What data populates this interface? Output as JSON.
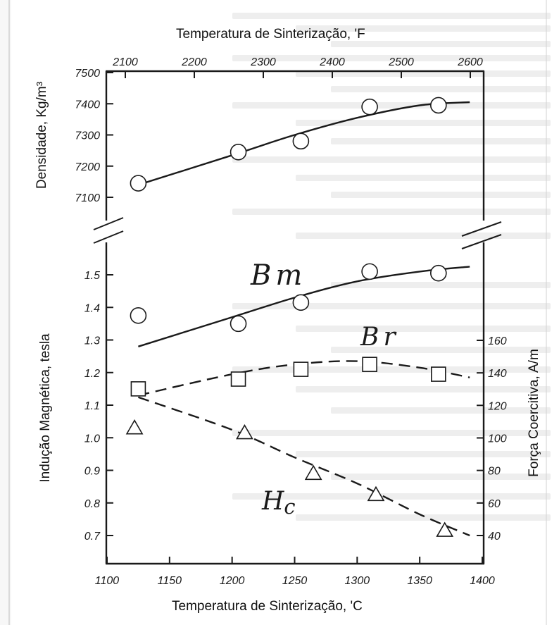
{
  "chart_data": {
    "type": "line",
    "title_top": "Temperatura de Sinterização, 'F",
    "xlabel": "Temperatura de Sinterização, 'C",
    "ylabel_top_left": "Densidade, Kg/m³",
    "ylabel_bottom_left": "Indução Magnética, tesla",
    "ylabel_right": "Força Coercitiva, A/m",
    "x_celsius": {
      "range": [
        1100,
        1400
      ],
      "ticks": [
        "1100",
        "1150",
        "1200",
        "1250",
        "1300",
        "1350",
        "1400"
      ]
    },
    "x_fahrenheit": {
      "range": [
        2100,
        2600
      ],
      "ticks": [
        "2100",
        "2200",
        "2300",
        "2400",
        "2500",
        "2600"
      ]
    },
    "y_density": {
      "range": [
        7000,
        7500
      ],
      "ticks": [
        "7100",
        "7200",
        "7300",
        "7400",
        "7500"
      ]
    },
    "y_tesla": {
      "range": [
        0.6,
        1.6
      ],
      "ticks": [
        "0.7",
        "0.8",
        "0.9",
        "1.0",
        "1.1",
        "1.2",
        "1.3",
        "1.4",
        "1.5"
      ]
    },
    "y_am": {
      "range": [
        20,
        180
      ],
      "ticks": [
        "40",
        "60",
        "80",
        "100",
        "120",
        "140",
        "160"
      ]
    },
    "series": [
      {
        "key": "density",
        "marker": "circle",
        "line": "solid",
        "x": [
          1125,
          1205,
          1255,
          1310,
          1365
        ],
        "y": [
          7145,
          7245,
          7280,
          7390,
          7395
        ],
        "curve_x": [
          1125,
          1200,
          1250,
          1300,
          1350,
          1390
        ],
        "curve_y": [
          7140,
          7235,
          7300,
          7355,
          7395,
          7405
        ]
      },
      {
        "name": "Bm",
        "marker": "circle",
        "line": "solid",
        "x": [
          1125,
          1205,
          1255,
          1310,
          1365
        ],
        "y": [
          1.375,
          1.35,
          1.415,
          1.51,
          1.505
        ],
        "curve_x": [
          1125,
          1200,
          1250,
          1300,
          1350,
          1390
        ],
        "curve_y": [
          1.28,
          1.37,
          1.43,
          1.48,
          1.51,
          1.525
        ]
      },
      {
        "name": "Br",
        "marker": "square",
        "line": "dashed",
        "x": [
          1125,
          1205,
          1255,
          1310,
          1365
        ],
        "y": [
          1.15,
          1.18,
          1.21,
          1.225,
          1.195
        ],
        "curve_x": [
          1125,
          1200,
          1250,
          1300,
          1350,
          1390
        ],
        "curve_y": [
          1.13,
          1.195,
          1.225,
          1.235,
          1.215,
          1.185
        ]
      },
      {
        "name": "Hc",
        "marker": "triangle",
        "line": "dashed",
        "axis": "right",
        "x": [
          1122,
          1210,
          1265,
          1315,
          1370
        ],
        "y": [
          106,
          103,
          78,
          65,
          43
        ],
        "curve_x": [
          1125,
          1200,
          1250,
          1300,
          1350,
          1390
        ],
        "curve_y": [
          125,
          105,
          88,
          72,
          53,
          40
        ]
      }
    ],
    "annotations": [
      {
        "text": "Bm",
        "series": "Bm"
      },
      {
        "text": "Br",
        "series": "Br"
      },
      {
        "text": "Hc",
        "series": "Hc"
      }
    ]
  },
  "colors": {
    "ink": "#1a1a1a",
    "paper": "#ffffff",
    "faint_text": "#c8c8c8"
  }
}
